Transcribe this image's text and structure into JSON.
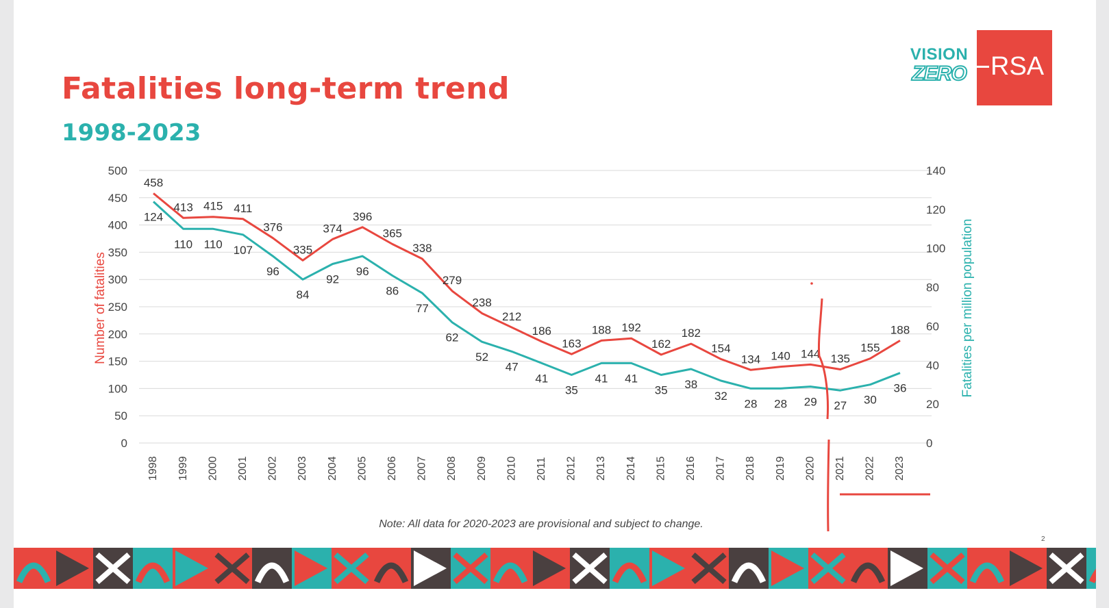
{
  "slide": {
    "title": "Fatalities long-term trend",
    "subtitle": "1998-2023",
    "logo_vision_line1": "VISION",
    "logo_vision_line2": "ZERO",
    "logo_rsa": "RSA",
    "note": "Note: All data for 2020-2023 are provisional and subject to change.",
    "page_number": "2",
    "colors": {
      "red": "#e8473f",
      "teal": "#2bb1ad",
      "dark": "#4a4040"
    }
  },
  "chart_data": {
    "type": "line",
    "categories": [
      "1998",
      "1999",
      "2000",
      "2001",
      "2002",
      "2003",
      "2004",
      "2005",
      "2006",
      "2007",
      "2008",
      "2009",
      "2010",
      "2011",
      "2012",
      "2013",
      "2014",
      "2015",
      "2016",
      "2017",
      "2018",
      "2019",
      "2020",
      "2021",
      "2022",
      "2023"
    ],
    "series": [
      {
        "axis": "left",
        "color": "#e8473f",
        "values": [
          458,
          413,
          415,
          411,
          376,
          335,
          374,
          396,
          365,
          338,
          279,
          238,
          212,
          186,
          163,
          188,
          192,
          162,
          182,
          154,
          134,
          140,
          144,
          135,
          155,
          188
        ]
      },
      {
        "axis": "right",
        "color": "#2bb1ad",
        "values": [
          124,
          110,
          110,
          107,
          96,
          84,
          92,
          96,
          86,
          77,
          62,
          52,
          47,
          41,
          35,
          41,
          41,
          35,
          38,
          32,
          28,
          28,
          29,
          27,
          30,
          36
        ]
      }
    ],
    "ylabel": "Number of fatalities",
    "y2label": "Fatalities per million population",
    "ylim": [
      0,
      500
    ],
    "y2lim": [
      0,
      140
    ],
    "yticks": [
      0,
      50,
      100,
      150,
      200,
      250,
      300,
      350,
      400,
      450,
      500
    ],
    "y2ticks": [
      0,
      20,
      40,
      60,
      80,
      100,
      120,
      140
    ],
    "grid": true,
    "legend": "none"
  }
}
